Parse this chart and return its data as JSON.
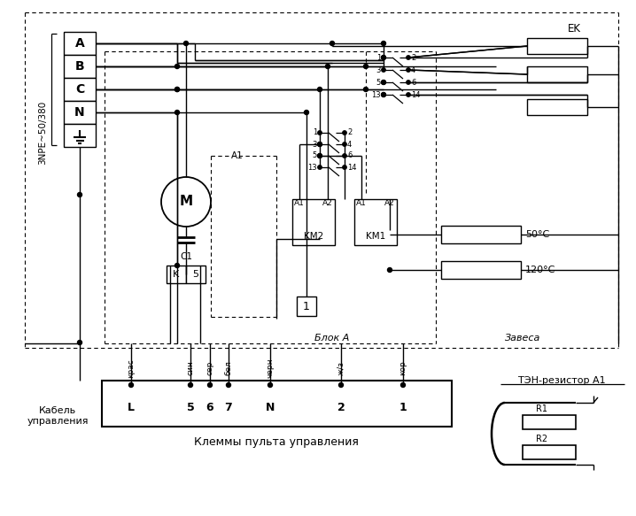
{
  "bg": "#ffffff",
  "fw": 7.18,
  "fh": 5.83,
  "dpi": 100,
  "label_3npe": "3NPE~50/380",
  "label_blok": "Блок А",
  "label_zavesa": "Завеса",
  "label_kabel": "Кабель\nуправления",
  "label_klemy": "Клеммы пульта управления",
  "label_ten": "ТЭН-резистор А1",
  "phases": [
    "A",
    "B",
    "C",
    "N"
  ],
  "term_labels": [
    "L",
    "5",
    "6",
    "7",
    "N",
    "2",
    "1"
  ],
  "color_labels": [
    "крас",
    "син",
    "сер",
    "бел",
    "черн",
    "ж/з",
    "кор"
  ]
}
